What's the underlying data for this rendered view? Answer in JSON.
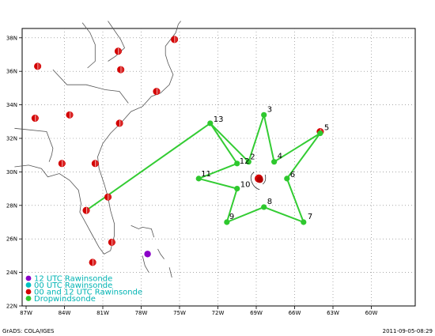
{
  "map": {
    "extent": {
      "lon": [
        -87,
        -80
      ],
      "lat": [
        22,
        39
      ]
    },
    "lat_ticks": [
      "22N",
      "24N",
      "26N",
      "28N",
      "30N",
      "32N",
      "34N",
      "36N",
      "38N"
    ],
    "lon_ticks": [
      "87W",
      "84W",
      "81W",
      "78W",
      "75W",
      "72W",
      "69W",
      "66W",
      "63W",
      "60W"
    ],
    "colors": {
      "rawin_12": "#8a00c8",
      "rawin_00": "#00c0c0",
      "rawin_both": "#d40000",
      "drop": "#2ec82e",
      "path": "#33cc33",
      "coast": "#555555"
    }
  },
  "legend": {
    "items": [
      {
        "label": "12 UTC Rawinsonde",
        "color": "#8a00c8"
      },
      {
        "label": "00 UTC Rawinsonde",
        "color": "#00c0c0"
      },
      {
        "label": "00 and 12 UTC Rawinsonde",
        "color": "#d40000"
      },
      {
        "label": "Dropwindsonde",
        "color": "#2ec82e"
      }
    ]
  },
  "footer": {
    "left": "GrADS: COLA/IGES",
    "right": "2011-09-05-08:29"
  },
  "drops": [
    {
      "id": "2",
      "lon": -69.6,
      "lat": 30.6
    },
    {
      "id": "3",
      "lon": -68.4,
      "lat": 33.4
    },
    {
      "id": "4",
      "lon": -67.6,
      "lat": 30.6
    },
    {
      "id": "5",
      "lon": -64.0,
      "lat": 32.3
    },
    {
      "id": "6",
      "lon": -66.6,
      "lat": 29.6
    },
    {
      "id": "7",
      "lon": -65.3,
      "lat": 27.0
    },
    {
      "id": "8",
      "lon": -68.4,
      "lat": 27.9
    },
    {
      "id": "9",
      "lon": -71.3,
      "lat": 27.0
    },
    {
      "id": "10",
      "lon": -70.5,
      "lat": 29.0
    },
    {
      "id": "11",
      "lon": -73.5,
      "lat": 29.6
    },
    {
      "id": "12",
      "lon": -70.5,
      "lat": 30.5
    },
    {
      "id": "13",
      "lon": -72.6,
      "lat": 32.9
    }
  ],
  "rawinsondes": [
    {
      "type": "both",
      "lon": -75.4,
      "lat": 37.9
    },
    {
      "type": "both",
      "lon": -79.8,
      "lat": 37.2
    },
    {
      "type": "both",
      "lon": -79.6,
      "lat": 36.1
    },
    {
      "type": "both",
      "lon": -86.1,
      "lat": 36.3
    },
    {
      "type": "both",
      "lon": -86.3,
      "lat": 33.2
    },
    {
      "type": "both",
      "lon": -83.6,
      "lat": 33.4
    },
    {
      "type": "both",
      "lon": -79.7,
      "lat": 32.9
    },
    {
      "type": "both",
      "lon": -76.8,
      "lat": 34.8
    },
    {
      "type": "both",
      "lon": -84.2,
      "lat": 30.5
    },
    {
      "type": "both",
      "lon": -81.6,
      "lat": 30.5
    },
    {
      "type": "both",
      "lon": -80.6,
      "lat": 28.5
    },
    {
      "type": "both",
      "lon": -82.3,
      "lat": 27.7
    },
    {
      "type": "both",
      "lon": -80.3,
      "lat": 25.8
    },
    {
      "type": "both",
      "lon": -81.8,
      "lat": 24.6
    },
    {
      "type": "both",
      "lon": -64.0,
      "lat": 32.4
    },
    {
      "type": "12",
      "lon": -77.5,
      "lat": 25.1
    }
  ],
  "storm": {
    "lon": -68.8,
    "lat": 29.6
  },
  "route": [
    {
      "lon": -73.5,
      "lat": 29.6
    },
    {
      "lon": -70.5,
      "lat": 29.0
    },
    {
      "lon": -71.3,
      "lat": 27.0
    },
    {
      "lon": -68.4,
      "lat": 27.9
    },
    {
      "lon": -65.3,
      "lat": 27.0
    },
    {
      "lon": -66.6,
      "lat": 29.6
    },
    {
      "lon": -64.0,
      "lat": 32.3
    },
    {
      "lon": -67.6,
      "lat": 30.6
    },
    {
      "lon": -68.4,
      "lat": 33.4
    },
    {
      "lon": -69.6,
      "lat": 30.6
    },
    {
      "lon": -72.6,
      "lat": 32.9
    },
    {
      "lon": -70.5,
      "lat": 30.5
    },
    {
      "lon": -73.5,
      "lat": 29.6
    }
  ],
  "ferry": [
    {
      "lon": -72.6,
      "lat": 32.9
    },
    {
      "lon": -82.3,
      "lat": 27.7
    }
  ]
}
